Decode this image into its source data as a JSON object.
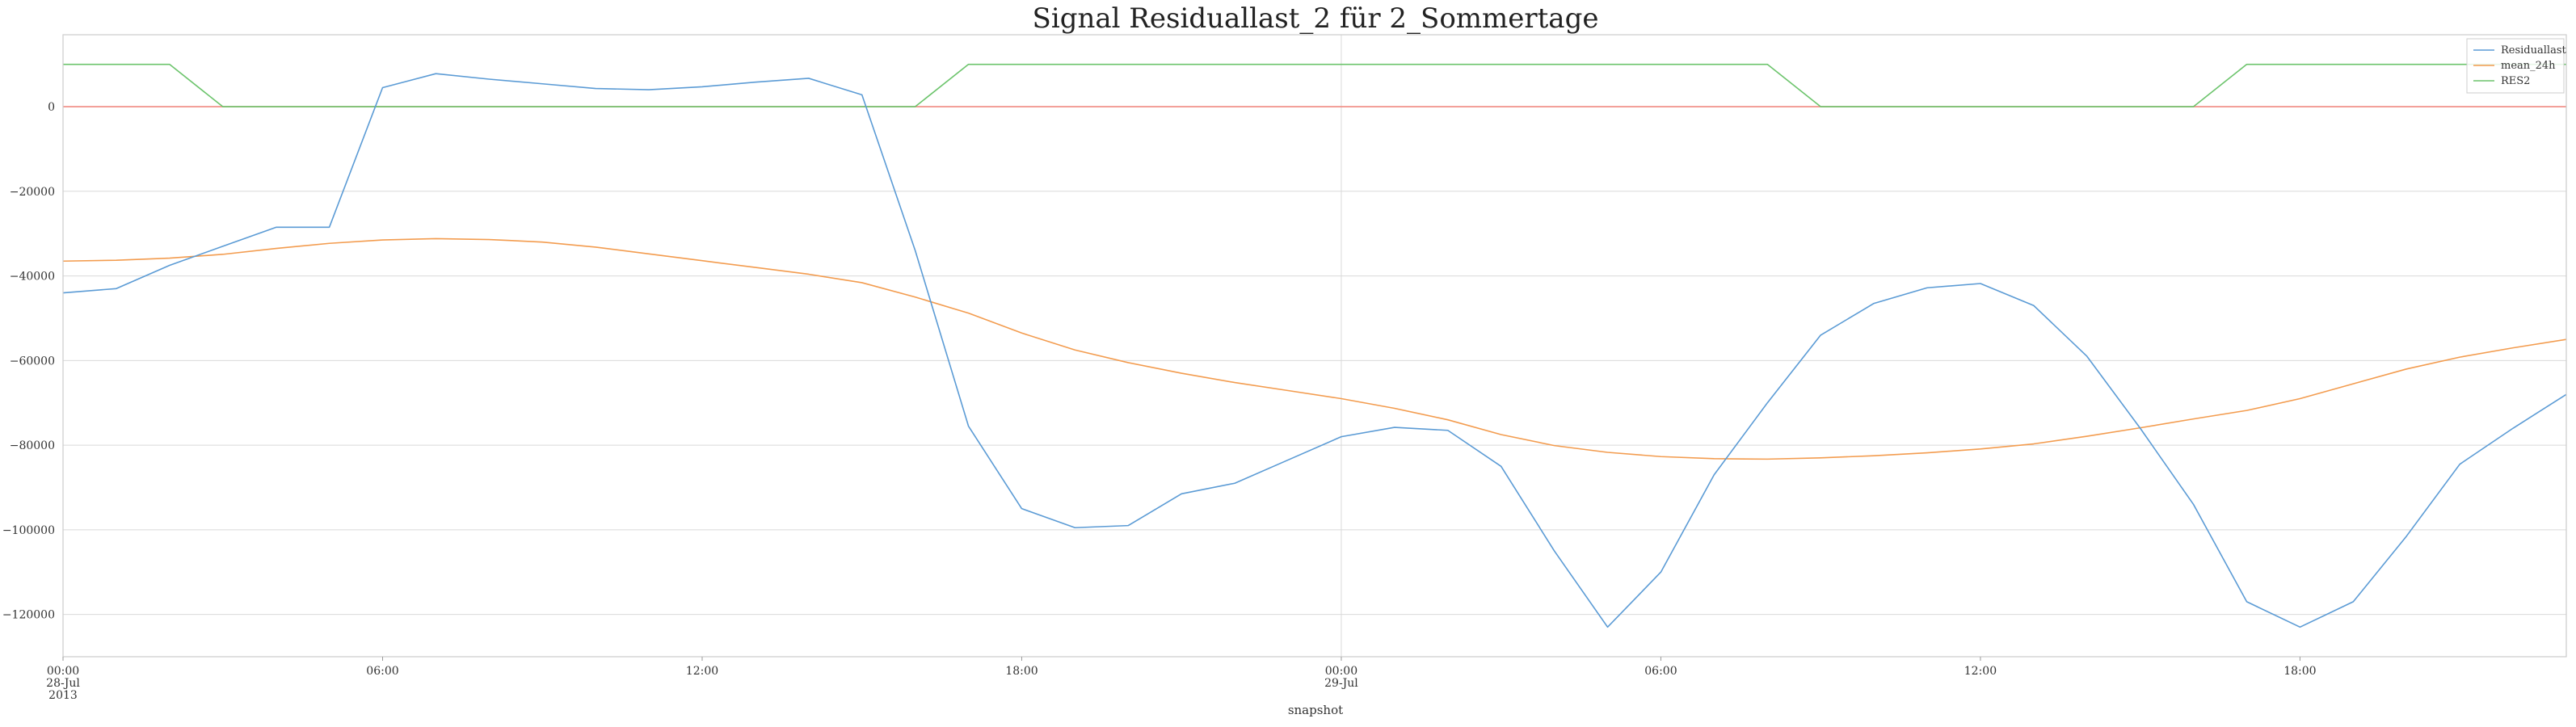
{
  "chart_data": {
    "type": "line",
    "title": "Signal Residuallast_2 für 2_Sommertage",
    "xlabel": "snapshot",
    "ylabel": "",
    "x_unit": "hour offset from 2013-07-28 00:00",
    "xlim": [
      0,
      47
    ],
    "ylim": [
      -130000,
      17000
    ],
    "grid": true,
    "legend_position": "top-right",
    "y_ticks": [
      0,
      -20000,
      -40000,
      -60000,
      -80000,
      -100000,
      -120000
    ],
    "y_tick_labels": [
      "0",
      "−20000",
      "−40000",
      "−60000",
      "−80000",
      "−100000",
      "−120000"
    ],
    "x_ticks": [
      {
        "x": 0,
        "lines": [
          "00:00",
          "28-Jul",
          "2013"
        ]
      },
      {
        "x": 6,
        "lines": [
          "06:00"
        ]
      },
      {
        "x": 12,
        "lines": [
          "12:00"
        ]
      },
      {
        "x": 18,
        "lines": [
          "18:00"
        ]
      },
      {
        "x": 24,
        "lines": [
          "00:00",
          "29-Jul"
        ]
      },
      {
        "x": 30,
        "lines": [
          "06:00"
        ]
      },
      {
        "x": 36,
        "lines": [
          "12:00"
        ]
      },
      {
        "x": 42,
        "lines": [
          "18:00"
        ]
      }
    ],
    "series": [
      {
        "name": "Residuallast",
        "color": "#5b9bd5",
        "values": [
          -44000,
          -43000,
          -37500,
          -33000,
          -28500,
          -28500,
          4500,
          7800,
          6500,
          5400,
          4300,
          4000,
          4700,
          5800,
          6700,
          2800,
          -34000,
          -75500,
          -95000,
          -99500,
          -99000,
          -91500,
          -89000,
          -83500,
          -78000,
          -75800,
          -76500,
          -85000,
          -105000,
          -123000,
          -110000,
          -87000,
          -70000,
          -54000,
          -46500,
          -42800,
          -41800,
          -47000,
          -59000,
          -76000,
          -94000,
          -117000,
          -123000,
          -117000,
          -101500,
          -84500,
          -76000,
          -68000
        ]
      },
      {
        "name": "mean_24h",
        "color": "#f39c4f",
        "values": [
          -36500,
          -36300,
          -35800,
          -34900,
          -33500,
          -32300,
          -31500,
          -31200,
          -31400,
          -32000,
          -33200,
          -34800,
          -36400,
          -38000,
          -39600,
          -41600,
          -45000,
          -48800,
          -53500,
          -57500,
          -60500,
          -63000,
          -65200,
          -67100,
          -69000,
          -71300,
          -74000,
          -77500,
          -80100,
          -81700,
          -82700,
          -83200,
          -83300,
          -83000,
          -82500,
          -81800,
          -80900,
          -79700,
          -77900,
          -75900,
          -73800,
          -71800,
          -69000,
          -65500,
          -62000,
          -59200,
          -57000,
          -55000
        ]
      },
      {
        "name": "RES2",
        "color": "#6cc46c",
        "values": [
          10000,
          10000,
          10000,
          0,
          0,
          0,
          0,
          0,
          0,
          0,
          0,
          0,
          0,
          0,
          0,
          0,
          0,
          10000,
          10000,
          10000,
          10000,
          10000,
          10000,
          10000,
          10000,
          10000,
          10000,
          10000,
          10000,
          10000,
          10000,
          10000,
          10000,
          0,
          0,
          0,
          0,
          0,
          0,
          0,
          0,
          10000,
          10000,
          10000,
          10000,
          10000,
          10000,
          10000
        ]
      },
      {
        "name": "",
        "color": "#f08a80",
        "values": [
          0,
          0,
          0,
          0,
          0,
          0,
          0,
          0,
          0,
          0,
          0,
          0,
          0,
          0,
          0,
          0,
          0,
          0,
          0,
          0,
          0,
          0,
          0,
          0,
          0,
          0,
          0,
          0,
          0,
          0,
          0,
          0,
          0,
          0,
          0,
          0,
          0,
          0,
          0,
          0,
          0,
          0,
          0,
          0,
          0,
          0,
          0,
          0
        ]
      }
    ]
  }
}
